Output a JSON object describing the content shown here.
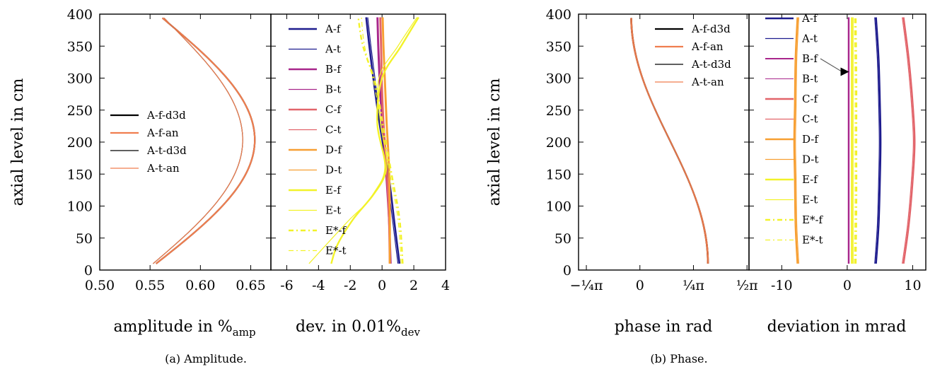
{
  "captions": {
    "a": "(a) Amplitude.",
    "b": "(b) Phase."
  },
  "chart_data": [
    {
      "id": "amp",
      "type": "line",
      "ylabel": "axial level in cm",
      "xlabel": "amplitude in %",
      "xlabel_sub": "amp",
      "xlim": [
        0.5,
        0.67
      ],
      "ylim": [
        0,
        400
      ],
      "xticks": [
        "0.50",
        "0.55",
        "0.60",
        "0.65"
      ],
      "xtick_values": [
        0.5,
        0.55,
        0.6,
        0.65
      ],
      "yticks": [
        "0",
        "50",
        "100",
        "150",
        "200",
        "250",
        "300",
        "350",
        "400"
      ],
      "ytick_values": [
        0,
        50,
        100,
        150,
        200,
        250,
        300,
        350,
        400
      ],
      "legend": {
        "position": "center-left",
        "entries": [
          "A-f-d3d",
          "A-f-an",
          "A-t-d3d",
          "A-t-an"
        ]
      },
      "series": [
        {
          "name": "A-f-d3d",
          "color": "#000000",
          "width": 2.2,
          "dash": "",
          "profile": "amp",
          "params": [
            0.556,
            0.654,
            0.56
          ]
        },
        {
          "name": "A-f-an",
          "color": "#f07e4f",
          "width": 2.2,
          "dash": "",
          "profile": "amp",
          "params": [
            0.556,
            0.654,
            0.56
          ]
        },
        {
          "name": "A-t-d3d",
          "color": "#000000",
          "width": 1.2,
          "dash": "",
          "profile": "amp",
          "params": [
            0.553,
            0.642,
            0.562
          ]
        },
        {
          "name": "A-t-an",
          "color": "#f07e4f",
          "width": 1.2,
          "dash": "",
          "profile": "amp",
          "params": [
            0.553,
            0.642,
            0.562
          ]
        }
      ]
    },
    {
      "id": "dev",
      "type": "line",
      "xlabel": "dev. in 0.01%",
      "xlabel_sub": "dev",
      "xlim": [
        -7,
        4
      ],
      "ylim": [
        0,
        400
      ],
      "xticks": [
        "-6",
        "-4",
        "-2",
        "0",
        "2",
        "4"
      ],
      "xtick_values": [
        -6,
        -4,
        -2,
        0,
        2,
        4
      ],
      "yticks": [],
      "legend": {
        "position": "left",
        "entries": [
          "A-f",
          "A-t",
          "B-f",
          "B-t",
          "C-f",
          "C-t",
          "D-f",
          "D-t",
          "E-f",
          "E-t",
          "E*-f",
          "E*-t"
        ]
      },
      "series": [
        {
          "name": "A-f",
          "color": "#1e1c8e",
          "width": 2.6,
          "dash": "",
          "profile": "pts",
          "x": [
            1.1,
            0.8,
            0.4,
            -0.1,
            -0.5,
            -0.8,
            -1.0
          ],
          "y": [
            10,
            70,
            150,
            220,
            290,
            350,
            395
          ]
        },
        {
          "name": "A-t",
          "color": "#1e1c8e",
          "width": 1.2,
          "dash": "",
          "profile": "pts",
          "x": [
            1.0,
            0.7,
            0.3,
            -0.1,
            -0.4,
            -0.7,
            -0.9
          ],
          "y": [
            10,
            70,
            150,
            220,
            290,
            350,
            395
          ]
        },
        {
          "name": "B-f",
          "color": "#a8268b",
          "width": 2.4,
          "dash": "",
          "profile": "pts",
          "x": [
            0.55,
            0.45,
            0.25,
            0.0,
            -0.15,
            -0.25,
            -0.3
          ],
          "y": [
            10,
            80,
            160,
            230,
            290,
            350,
            395
          ]
        },
        {
          "name": "B-t",
          "color": "#a8268b",
          "width": 1.2,
          "dash": "",
          "profile": "pts",
          "x": [
            0.5,
            0.4,
            0.2,
            0.0,
            -0.1,
            -0.2,
            -0.25
          ],
          "y": [
            10,
            80,
            160,
            230,
            290,
            350,
            395
          ]
        },
        {
          "name": "C-f",
          "color": "#e2646a",
          "width": 2.4,
          "dash": "",
          "profile": "pts",
          "x": [
            0.5,
            0.45,
            0.3,
            0.1,
            0.0,
            -0.05,
            -0.1
          ],
          "y": [
            10,
            80,
            160,
            230,
            290,
            350,
            395
          ]
        },
        {
          "name": "C-t",
          "color": "#e2646a",
          "width": 1.2,
          "dash": "",
          "profile": "pts",
          "x": [
            0.45,
            0.4,
            0.25,
            0.05,
            -0.05,
            -0.1,
            -0.15
          ],
          "y": [
            10,
            80,
            160,
            230,
            290,
            350,
            395
          ]
        },
        {
          "name": "D-f",
          "color": "#f79f32",
          "width": 2.4,
          "dash": "",
          "profile": "pts",
          "x": [
            0.5,
            0.5,
            0.45,
            0.3,
            0.2,
            0.1,
            0.05
          ],
          "y": [
            10,
            80,
            160,
            230,
            290,
            350,
            395
          ]
        },
        {
          "name": "D-t",
          "color": "#f79f32",
          "width": 1.2,
          "dash": "",
          "profile": "pts",
          "x": [
            0.45,
            0.45,
            0.4,
            0.25,
            0.15,
            0.05,
            0.0
          ],
          "y": [
            10,
            80,
            160,
            230,
            290,
            350,
            395
          ]
        },
        {
          "name": "E-f",
          "color": "#f2f229",
          "width": 2.4,
          "dash": "",
          "profile": "pts",
          "x": [
            -3.2,
            -2.8,
            -1.8,
            -0.5,
            0.2,
            -0.3,
            0.0,
            1.2,
            2.3
          ],
          "y": [
            10,
            40,
            80,
            120,
            160,
            230,
            300,
            350,
            395
          ]
        },
        {
          "name": "E-t",
          "color": "#f2f229",
          "width": 1.2,
          "dash": "",
          "profile": "pts",
          "x": [
            -4.6,
            -3.5,
            -2.0,
            -0.6,
            0.3,
            -0.1,
            -0.2,
            1.0,
            2.2
          ],
          "y": [
            10,
            40,
            80,
            115,
            160,
            230,
            300,
            350,
            395
          ]
        },
        {
          "name": "E*-f",
          "color": "#f2f229",
          "width": 2.4,
          "dash": "7,4,2,4",
          "profile": "pts",
          "x": [
            1.3,
            1.1,
            0.6,
            0.1,
            -0.4,
            -1.2,
            -1.5
          ],
          "y": [
            10,
            80,
            150,
            220,
            290,
            350,
            395
          ]
        },
        {
          "name": "E*-t",
          "color": "#f2f229",
          "width": 1.2,
          "dash": "7,4,2,4",
          "profile": "pts",
          "x": [
            1.2,
            1.0,
            0.5,
            0.0,
            -0.5,
            -1.1,
            -1.3
          ],
          "y": [
            10,
            80,
            150,
            220,
            290,
            350,
            395
          ]
        }
      ]
    },
    {
      "id": "phase",
      "type": "line",
      "ylabel": "axial level in cm",
      "xlabel": "phase in rad",
      "xlim": [
        -0.9,
        1.6
      ],
      "ylim": [
        0,
        400
      ],
      "xticks": [
        "−¼π",
        "0",
        "¼π",
        "½π"
      ],
      "xtick_values": [
        -0.7854,
        0,
        0.7854,
        1.5708
      ],
      "yticks": [
        "0",
        "50",
        "100",
        "150",
        "200",
        "250",
        "300",
        "350",
        "400"
      ],
      "ytick_values": [
        0,
        50,
        100,
        150,
        200,
        250,
        300,
        350,
        400
      ],
      "legend": {
        "position": "top-right",
        "entries": [
          "A-f-d3d",
          "A-f-an",
          "A-t-d3d",
          "A-t-an"
        ]
      },
      "series": [
        {
          "name": "A-f-d3d",
          "color": "#000000",
          "width": 2.2,
          "dash": "",
          "profile": "phase",
          "params": [
            1.0,
            -0.13
          ]
        },
        {
          "name": "A-f-an",
          "color": "#f07e4f",
          "width": 2.2,
          "dash": "",
          "profile": "phase",
          "params": [
            1.0,
            -0.13
          ]
        },
        {
          "name": "A-t-d3d",
          "color": "#000000",
          "width": 1.2,
          "dash": "",
          "profile": "phase",
          "params": [
            0.99,
            -0.12
          ]
        },
        {
          "name": "A-t-an",
          "color": "#f07e4f",
          "width": 1.2,
          "dash": "",
          "profile": "phase",
          "params": [
            0.99,
            -0.12
          ]
        }
      ]
    },
    {
      "id": "phdev",
      "type": "line",
      "xlabel": "deviation in mrad",
      "xlim": [
        -15,
        12
      ],
      "ylim": [
        0,
        400
      ],
      "xticks": [
        "-10",
        "0",
        "10"
      ],
      "xtick_values": [
        -10,
        0,
        10
      ],
      "yticks": [],
      "legend": {
        "position": "left",
        "entries": [
          "A-f",
          "A-t",
          "B-f",
          "B-t",
          "C-f",
          "C-t",
          "D-f",
          "D-t",
          "E-f",
          "E-t",
          "E*-f",
          "E*-t"
        ]
      },
      "annotation": {
        "type": "arrow",
        "from_entry": "B-f",
        "to_x": 0.5,
        "to_y": 310
      },
      "series": [
        {
          "name": "A-f",
          "color": "#1e1c8e",
          "width": 2.4,
          "dash": "",
          "profile": "pts",
          "x": [
            4.4,
            4.8,
            5.0,
            5.1,
            5.0,
            4.8,
            4.4
          ],
          "y": [
            10,
            70,
            140,
            200,
            260,
            330,
            395
          ]
        },
        {
          "name": "A-t",
          "color": "#1e1c8e",
          "width": 1.2,
          "dash": "",
          "profile": "pts",
          "x": [
            4.2,
            4.6,
            4.8,
            4.9,
            4.8,
            4.6,
            4.2
          ],
          "y": [
            10,
            70,
            140,
            200,
            260,
            330,
            395
          ]
        },
        {
          "name": "B-f",
          "color": "#a8268b",
          "width": 2.0,
          "dash": "",
          "profile": "pts",
          "x": [
            0.2,
            0.2,
            0.2,
            0.2,
            0.2
          ],
          "y": [
            10,
            100,
            200,
            300,
            395
          ]
        },
        {
          "name": "B-t",
          "color": "#a8268b",
          "width": 1.0,
          "dash": "",
          "profile": "pts",
          "x": [
            0.3,
            0.3,
            0.3,
            0.3,
            0.3
          ],
          "y": [
            10,
            100,
            200,
            300,
            395
          ]
        },
        {
          "name": "C-f",
          "color": "#e2646a",
          "width": 2.4,
          "dash": "",
          "profile": "pts",
          "x": [
            8.6,
            9.4,
            10.0,
            10.3,
            10.0,
            9.4,
            8.6
          ],
          "y": [
            10,
            70,
            140,
            200,
            260,
            330,
            395
          ]
        },
        {
          "name": "C-t",
          "color": "#e2646a",
          "width": 1.2,
          "dash": "",
          "profile": "pts",
          "x": [
            8.4,
            9.2,
            9.8,
            10.1,
            9.8,
            9.2,
            8.4
          ],
          "y": [
            10,
            70,
            140,
            200,
            260,
            330,
            395
          ]
        },
        {
          "name": "D-f",
          "color": "#f79f32",
          "width": 2.4,
          "dash": "",
          "profile": "pts",
          "x": [
            -7.6,
            -7.9,
            -8.0,
            -8.1,
            -8.0,
            -7.9,
            -7.6
          ],
          "y": [
            10,
            70,
            140,
            200,
            260,
            330,
            395
          ]
        },
        {
          "name": "D-t",
          "color": "#f79f32",
          "width": 1.2,
          "dash": "",
          "profile": "pts",
          "x": [
            -7.4,
            -7.7,
            -7.8,
            -7.9,
            -7.8,
            -7.7,
            -7.4
          ],
          "y": [
            10,
            70,
            140,
            200,
            260,
            330,
            395
          ]
        },
        {
          "name": "E-f",
          "color": "#f2f229",
          "width": 2.4,
          "dash": "",
          "profile": "pts",
          "x": [
            0.7,
            0.7,
            0.7,
            0.7,
            0.7
          ],
          "y": [
            10,
            100,
            200,
            300,
            395
          ]
        },
        {
          "name": "E-t",
          "color": "#f2f229",
          "width": 1.2,
          "dash": "",
          "profile": "pts",
          "x": [
            0.9,
            0.9,
            0.9,
            0.9,
            0.9
          ],
          "y": [
            10,
            100,
            200,
            300,
            395
          ]
        },
        {
          "name": "E*-f",
          "color": "#f2f229",
          "width": 2.4,
          "dash": "7,4,2,4",
          "profile": "pts",
          "x": [
            1.3,
            1.4,
            1.4,
            1.4,
            1.3
          ],
          "y": [
            10,
            100,
            200,
            300,
            395
          ]
        },
        {
          "name": "E*-t",
          "color": "#f2f229",
          "width": 1.2,
          "dash": "7,4,2,4",
          "profile": "pts",
          "x": [
            1.1,
            1.2,
            1.2,
            1.2,
            1.1
          ],
          "y": [
            10,
            100,
            200,
            300,
            395
          ]
        }
      ]
    }
  ]
}
